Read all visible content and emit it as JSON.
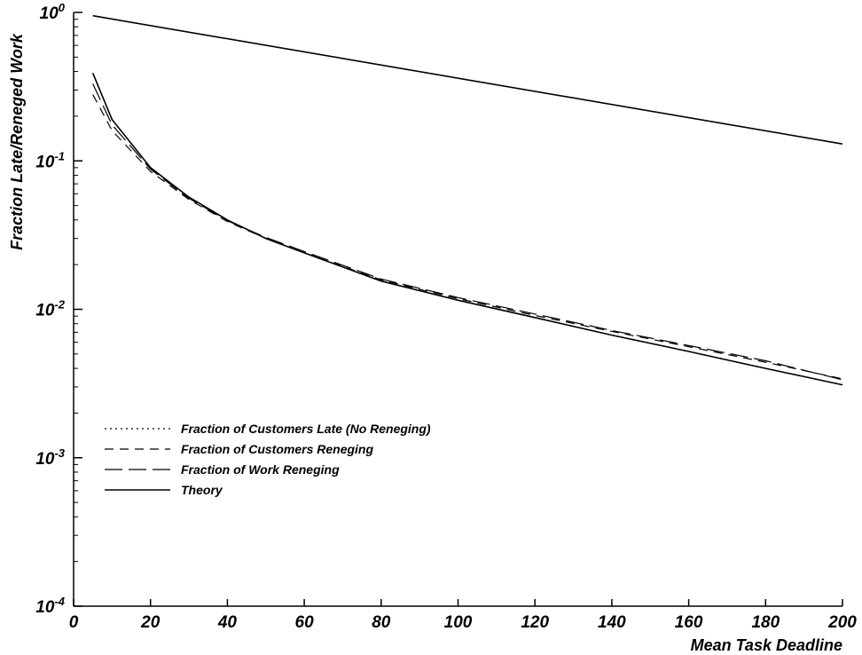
{
  "chart_data": {
    "type": "line",
    "xlabel": "Mean Task Deadline",
    "ylabel": "Fraction Late/Reneged Work",
    "xlim": [
      0,
      200
    ],
    "ylim": [
      0.0001,
      1
    ],
    "yscale": "log",
    "x_ticks": [
      "0",
      "20",
      "40",
      "60",
      "80",
      "100",
      "120",
      "140",
      "160",
      "180",
      "200"
    ],
    "y_ticks": [
      {
        "base": "10",
        "exp": "0"
      },
      {
        "base": "10",
        "exp": "-1"
      },
      {
        "base": "10",
        "exp": "-2"
      },
      {
        "base": "10",
        "exp": "-3"
      },
      {
        "base": "10",
        "exp": "-4"
      }
    ],
    "legend_position": "lower-left",
    "series": [
      {
        "name": "Fraction of Customers Late (No Reneging)",
        "style": "dotted",
        "x": [
          5,
          10,
          20,
          30,
          40,
          50,
          60,
          80,
          100,
          120,
          140,
          160,
          180,
          200
        ],
        "y": [
          0.39,
          0.19,
          0.09,
          0.057,
          0.04,
          0.03,
          0.024,
          0.0155,
          0.0115,
          0.0088,
          0.0067,
          0.0052,
          0.004,
          0.0031
        ]
      },
      {
        "name": "Fraction of Customers Reneging",
        "style": "dashed",
        "x": [
          5,
          10,
          20,
          30,
          40,
          50,
          60,
          80,
          100,
          120,
          140,
          160,
          180,
          200
        ],
        "y": [
          0.28,
          0.16,
          0.085,
          0.055,
          0.039,
          0.03,
          0.024,
          0.0158,
          0.0118,
          0.0091,
          0.0071,
          0.0056,
          0.0044,
          0.0034
        ]
      },
      {
        "name": "Fraction of Work Reneging",
        "style": "long-dash",
        "x": [
          5,
          10,
          20,
          30,
          40,
          50,
          60,
          80,
          100,
          120,
          140,
          160,
          180,
          200
        ],
        "y": [
          0.33,
          0.175,
          0.088,
          0.056,
          0.0395,
          0.0305,
          0.0245,
          0.016,
          0.012,
          0.0093,
          0.0072,
          0.0057,
          0.0045,
          0.00335
        ]
      },
      {
        "name": "Theory",
        "style": "solid",
        "x": [
          5,
          10,
          20,
          30,
          40,
          50,
          60,
          80,
          100,
          120,
          140,
          160,
          180,
          200
        ],
        "y": [
          0.39,
          0.19,
          0.09,
          0.057,
          0.04,
          0.03,
          0.024,
          0.0155,
          0.0115,
          0.0088,
          0.0067,
          0.0052,
          0.004,
          0.0031
        ]
      },
      {
        "name": "",
        "style": "solid",
        "x": [
          5,
          200
        ],
        "y": [
          0.95,
          0.13
        ]
      }
    ]
  }
}
